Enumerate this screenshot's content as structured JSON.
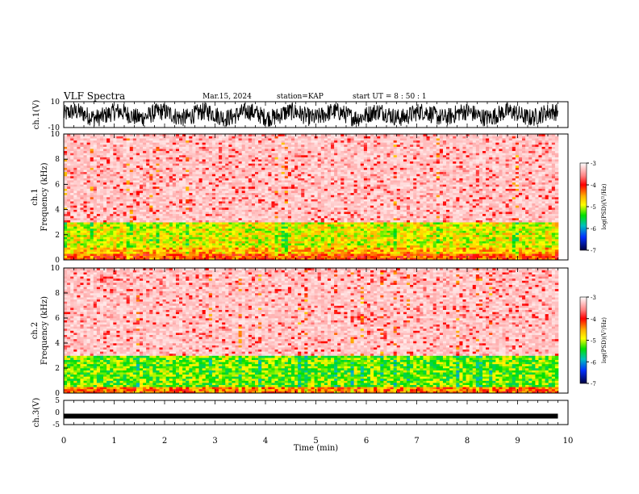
{
  "header": {
    "title": "VLF Spectra",
    "date": "Mar.15, 2024",
    "station": "station=KAP",
    "start": "start  UT =   8  : 50 : 1"
  },
  "chart_data": [
    {
      "type": "line",
      "title": "",
      "ylabel": "ch.1(V)",
      "ylim": [
        -10,
        10
      ],
      "yticks": [
        -10,
        10
      ],
      "xlim": [
        0,
        10
      ],
      "xunits": "min",
      "description_values": {
        "typical_range": [
          -8,
          8
        ]
      }
    },
    {
      "type": "heatmap",
      "ylabel_line1": "ch.1",
      "ylabel_line2": "Frequency  (kHz)",
      "ylim": [
        0,
        10
      ],
      "yticks": [
        0,
        2,
        4,
        6,
        8,
        10
      ],
      "xlim": [
        0,
        10
      ],
      "colorbar": {
        "label": "log(PSD)(V²/Hz)",
        "range": [
          -7,
          -3
        ],
        "ticks": [
          -3,
          -4,
          -5,
          -6,
          -7
        ]
      },
      "bands_kHz": [
        {
          "from": 0.0,
          "to": 0.5,
          "level": -4.2
        },
        {
          "from": 0.5,
          "to": 1.0,
          "level": -4.6
        },
        {
          "from": 1.0,
          "to": 3.0,
          "level": -4.9
        },
        {
          "from": 3.0,
          "to": 10.0,
          "level": -3.6
        }
      ]
    },
    {
      "type": "heatmap",
      "ylabel_line1": "ch.2",
      "ylabel_line2": "Frequency  (kHz)",
      "ylim": [
        0,
        10
      ],
      "yticks": [
        0,
        2,
        4,
        6,
        8,
        10
      ],
      "xlim": [
        0,
        10
      ],
      "colorbar": {
        "label": "log(PSD)(V²/Hz)",
        "range": [
          -7,
          -3
        ],
        "ticks": [
          -3,
          -4,
          -5,
          -6,
          -7
        ]
      },
      "bands_kHz": [
        {
          "from": 0.0,
          "to": 0.5,
          "level": -4.3
        },
        {
          "from": 0.5,
          "to": 3.0,
          "level": -5.2
        },
        {
          "from": 3.0,
          "to": 10.0,
          "level": -3.6
        }
      ]
    },
    {
      "type": "line",
      "ylabel": "ch.3(V)",
      "ylim": [
        -5,
        5
      ],
      "yticks": [
        -5,
        0,
        5
      ],
      "xlabel": "Time  (min)",
      "xlim": [
        0,
        10
      ],
      "xticks": [
        0,
        1,
        2,
        3,
        4,
        5,
        6,
        7,
        8,
        9,
        10
      ],
      "level_V": -1.5
    }
  ]
}
